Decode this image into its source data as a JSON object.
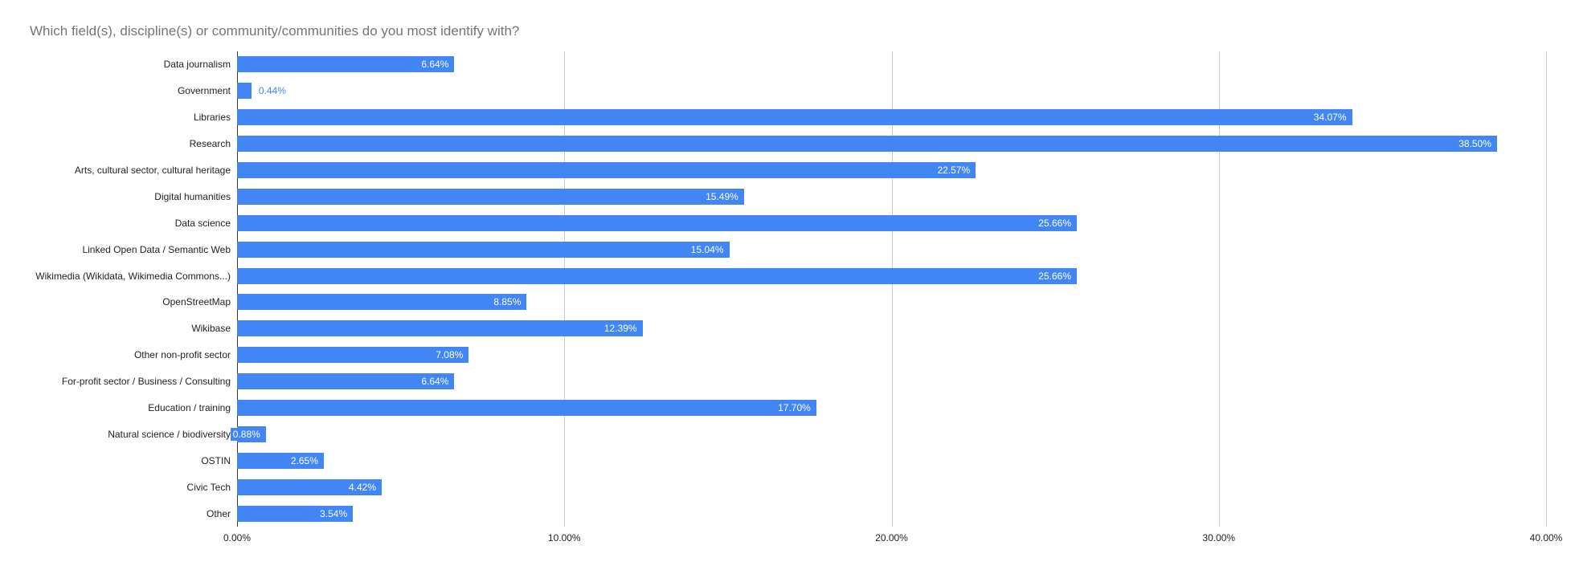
{
  "title": "Which field(s), discipline(s) or community/communities do you most identify with?",
  "colors": {
    "bar": "#4285f4",
    "annotation_inside_text": "#ffffff",
    "annotation_outside_text": "#4285f4",
    "gridline": "#cccccc",
    "baseline": "#333333",
    "title_text": "#757575",
    "label_text": "#222222"
  },
  "chart_data": {
    "type": "bar",
    "orientation": "horizontal",
    "title": "Which field(s), discipline(s) or community/communities do you most identify with?",
    "categories": [
      "Data journalism",
      "Government",
      "Libraries",
      "Research",
      "Arts, cultural sector, cultural heritage",
      "Digital humanities",
      "Data science",
      "Linked Open Data / Semantic Web",
      "Wikimedia (Wikidata, Wikimedia Commons...)",
      "OpenStreetMap",
      "Wikibase",
      "Other non-profit sector",
      "For-profit sector / Business / Consulting",
      "Education / training",
      "Natural science / biodiversity",
      "OSTIN",
      "Civic Tech",
      "Other"
    ],
    "values": [
      6.64,
      0.44,
      34.07,
      38.5,
      22.57,
      15.49,
      25.66,
      15.04,
      25.66,
      8.85,
      12.39,
      7.08,
      6.64,
      17.7,
      0.88,
      2.65,
      4.42,
      3.54
    ],
    "value_labels": [
      "6.64%",
      "0.44%",
      "34.07%",
      "38.50%",
      "22.57%",
      "15.49%",
      "25.66%",
      "15.04%",
      "25.66%",
      "8.85%",
      "12.39%",
      "7.08%",
      "6.64%",
      "17.70%",
      "0.88%",
      "2.65%",
      "4.42%",
      "3.54%"
    ],
    "annotation_positions": [
      "inside",
      "outside",
      "inside",
      "inside",
      "inside",
      "inside",
      "inside",
      "inside",
      "inside",
      "inside",
      "inside",
      "inside",
      "inside",
      "inside",
      "inside",
      "inside",
      "inside",
      "inside"
    ],
    "xlabel": "",
    "ylabel": "",
    "xlim": [
      0,
      40
    ],
    "x_tick_labels": [
      "0.00%",
      "10.00%",
      "20.00%",
      "30.00%",
      "40.00%"
    ],
    "x_tick_values": [
      0,
      10,
      20,
      30,
      40
    ],
    "grid": "vertical-on",
    "legend_position": "none"
  }
}
